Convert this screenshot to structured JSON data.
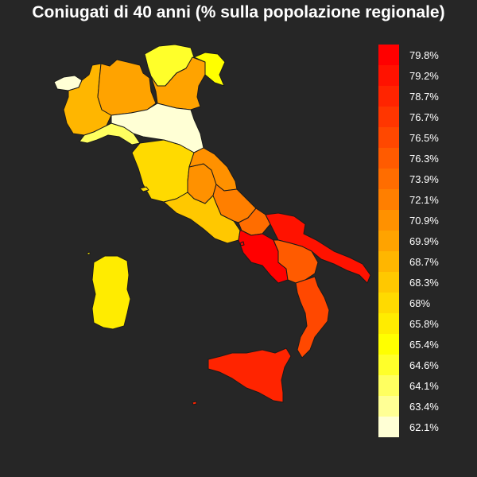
{
  "title": "Coniugati di 40 anni (% sulla popolazione regionale)",
  "legend": [
    {
      "label": "79.8%",
      "color": "#ff0000"
    },
    {
      "label": "79.2%",
      "color": "#ff1200"
    },
    {
      "label": "78.7%",
      "color": "#ff2400"
    },
    {
      "label": "76.7%",
      "color": "#ff3600"
    },
    {
      "label": "76.5%",
      "color": "#ff4800"
    },
    {
      "label": "76.3%",
      "color": "#ff5b00"
    },
    {
      "label": "73.9%",
      "color": "#ff6d00"
    },
    {
      "label": "72.1%",
      "color": "#ff7f00"
    },
    {
      "label": "70.9%",
      "color": "#ff9100"
    },
    {
      "label": "69.9%",
      "color": "#ffa300"
    },
    {
      "label": "68.7%",
      "color": "#ffb600"
    },
    {
      "label": "68.3%",
      "color": "#ffc800"
    },
    {
      "label": "68%",
      "color": "#ffda00"
    },
    {
      "label": "65.8%",
      "color": "#ffec00"
    },
    {
      "label": "65.4%",
      "color": "#ffff00"
    },
    {
      "label": "64.6%",
      "color": "#ffff2a"
    },
    {
      "label": "64.1%",
      "color": "#ffff60"
    },
    {
      "label": "63.4%",
      "color": "#ffff95"
    },
    {
      "label": "62.1%",
      "color": "#ffffd5"
    }
  ],
  "regions": [
    {
      "name": "valle-d-aosta",
      "color": "#ffffd5"
    },
    {
      "name": "piemonte",
      "color": "#ffb600"
    },
    {
      "name": "lombardia",
      "color": "#ffa300"
    },
    {
      "name": "trentino-alto-adige",
      "color": "#ffff2a"
    },
    {
      "name": "veneto",
      "color": "#ffa300"
    },
    {
      "name": "friuli-venezia-giulia",
      "color": "#ffff00"
    },
    {
      "name": "liguria",
      "color": "#ffff60"
    },
    {
      "name": "emilia-romagna",
      "color": "#ffffd5"
    },
    {
      "name": "toscana",
      "color": "#ffda00"
    },
    {
      "name": "umbria",
      "color": "#ff9100"
    },
    {
      "name": "marche",
      "color": "#ff9100"
    },
    {
      "name": "lazio",
      "color": "#ffc800"
    },
    {
      "name": "abruzzo",
      "color": "#ff7f00"
    },
    {
      "name": "molise",
      "color": "#ff6d00"
    },
    {
      "name": "campania",
      "color": "#ff0000"
    },
    {
      "name": "puglia",
      "color": "#ff1200"
    },
    {
      "name": "basilicata",
      "color": "#ff5b00"
    },
    {
      "name": "calabria",
      "color": "#ff4800"
    },
    {
      "name": "sicilia",
      "color": "#ff2400"
    },
    {
      "name": "sardegna",
      "color": "#ffec00"
    }
  ]
}
